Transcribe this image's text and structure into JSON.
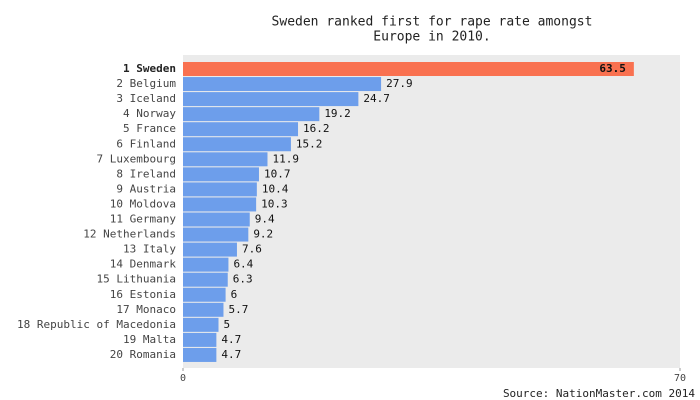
{
  "chart_data": {
    "type": "hbar",
    "title": [
      "Sweden ranked first for rape rate amongst",
      "Europe in 2010."
    ],
    "categories": [
      "1 Sweden",
      "2 Belgium",
      "3 Iceland",
      "4 Norway",
      "5 France",
      "6 Finland",
      "7 Luxembourg",
      "8 Ireland",
      "9 Austria",
      "10 Moldova",
      "11 Germany",
      "12 Netherlands",
      "13 Italy",
      "14 Denmark",
      "15 Lithuania",
      "16 Estonia",
      "17 Monaco",
      "18 Republic of Macedonia",
      "19 Malta",
      "20 Romania"
    ],
    "values": [
      63.5,
      27.9,
      24.7,
      19.2,
      16.2,
      15.2,
      11.9,
      10.7,
      10.4,
      10.3,
      9.4,
      9.2,
      7.6,
      6.4,
      6.3,
      6,
      5.7,
      5,
      4.7,
      4.7
    ],
    "colors": [
      "#f97150",
      "#6d9eeb",
      "#6d9eeb",
      "#6d9eeb",
      "#6d9eeb",
      "#6d9eeb",
      "#6d9eeb",
      "#6d9eeb",
      "#6d9eeb",
      "#6d9eeb",
      "#6d9eeb",
      "#6d9eeb",
      "#6d9eeb",
      "#6d9eeb",
      "#6d9eeb",
      "#6d9eeb",
      "#6d9eeb",
      "#6d9eeb",
      "#6d9eeb",
      "#6d9eeb"
    ],
    "highlight_color": "#f97150",
    "xlim": [
      0,
      70
    ],
    "xticks": [
      0,
      70
    ],
    "source": "Source: NationMaster.com 2014"
  }
}
